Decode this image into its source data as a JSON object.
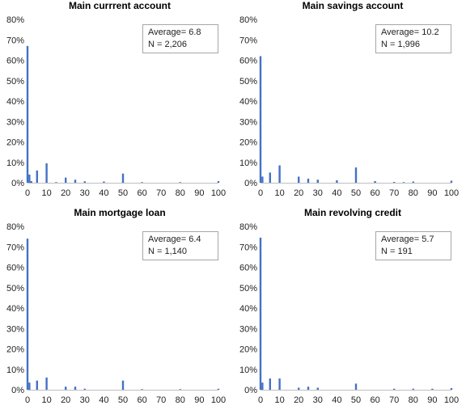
{
  "chart_data": [
    {
      "type": "bar",
      "title": "Main currrent account",
      "stats": {
        "average": "Average= 6.8",
        "n": "N = 2,206"
      },
      "ylim": [
        0,
        80
      ],
      "yticks": [
        "0%",
        "10%",
        "20%",
        "30%",
        "40%",
        "50%",
        "60%",
        "70%",
        "80%"
      ],
      "xlim": [
        0,
        100
      ],
      "xticks": [
        "0",
        "10",
        "20",
        "30",
        "40",
        "50",
        "60",
        "70",
        "80",
        "90",
        "100"
      ],
      "grid": false,
      "color": "#4472c4",
      "x": [
        0,
        1,
        2,
        5,
        10,
        15,
        20,
        25,
        30,
        40,
        50,
        60,
        80,
        100
      ],
      "values": [
        67,
        4,
        0.8,
        6,
        9.5,
        0.3,
        2.5,
        1.5,
        0.7,
        0.6,
        4.5,
        0.3,
        0.3,
        0.8
      ]
    },
    {
      "type": "bar",
      "title": "Main savings account",
      "stats": {
        "average": "Average= 10.2",
        "n": "N = 1,996"
      },
      "ylim": [
        0,
        80
      ],
      "yticks": [
        "0%",
        "10%",
        "20%",
        "30%",
        "40%",
        "50%",
        "60%",
        "70%",
        "80%"
      ],
      "xlim": [
        0,
        100
      ],
      "xticks": [
        "0",
        "10",
        "20",
        "30",
        "40",
        "50",
        "60",
        "70",
        "80",
        "90",
        "100"
      ],
      "grid": false,
      "color": "#4472c4",
      "x": [
        0,
        1,
        5,
        10,
        20,
        25,
        30,
        40,
        50,
        60,
        70,
        75,
        80,
        100
      ],
      "values": [
        62,
        3,
        5,
        8.5,
        3,
        2,
        1.5,
        1.2,
        7.5,
        0.8,
        0.4,
        0.3,
        0.6,
        1
      ]
    },
    {
      "type": "bar",
      "title": "Main mortgage loan",
      "stats": {
        "average": "Average= 6.4",
        "n": "N = 1,140"
      },
      "ylim": [
        0,
        80
      ],
      "yticks": [
        "0%",
        "10%",
        "20%",
        "30%",
        "40%",
        "50%",
        "60%",
        "70%",
        "80%"
      ],
      "xlim": [
        0,
        100
      ],
      "xticks": [
        "0",
        "10",
        "20",
        "30",
        "40",
        "50",
        "60",
        "70",
        "80",
        "90",
        "100"
      ],
      "grid": false,
      "color": "#4472c4",
      "x": [
        0,
        1,
        5,
        10,
        20,
        25,
        30,
        50,
        60,
        80,
        100
      ],
      "values": [
        74,
        3.5,
        4.5,
        6,
        1.5,
        1.5,
        0.5,
        4.5,
        0.3,
        0.3,
        0.5
      ]
    },
    {
      "type": "bar",
      "title": "Main revolving credit",
      "stats": {
        "average": "Average= 5.7",
        "n": "N = 191"
      },
      "ylim": [
        0,
        80
      ],
      "yticks": [
        "0%",
        "10%",
        "20%",
        "30%",
        "40%",
        "50%",
        "60%",
        "70%",
        "80%"
      ],
      "xlim": [
        0,
        100
      ],
      "xticks": [
        "0",
        "10",
        "20",
        "30",
        "40",
        "50",
        "60",
        "70",
        "80",
        "90",
        "100"
      ],
      "grid": false,
      "color": "#4472c4",
      "x": [
        0,
        1,
        5,
        10,
        20,
        25,
        30,
        50,
        70,
        80,
        90,
        100
      ],
      "values": [
        74.5,
        3.5,
        5.5,
        5.5,
        1,
        1.5,
        1,
        3,
        0.5,
        0.5,
        0.5,
        0.8
      ]
    }
  ]
}
